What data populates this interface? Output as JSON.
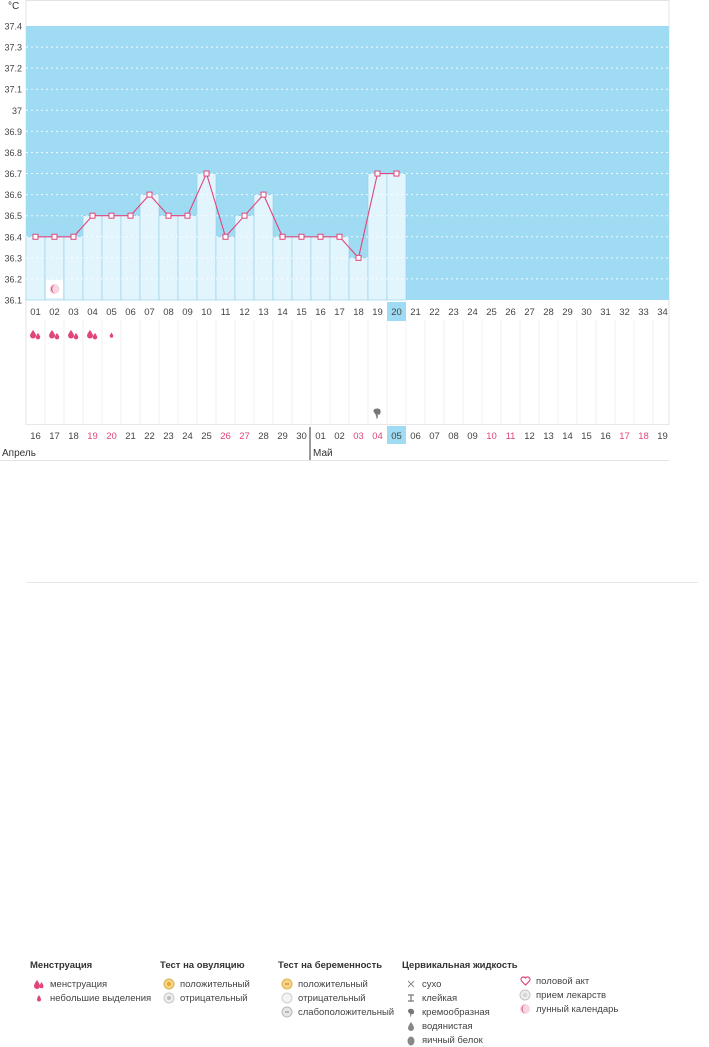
{
  "chart_data": {
    "type": "line",
    "unit_label": "°C",
    "ylim": [
      36.1,
      37.4
    ],
    "y_ticks": [
      "36.1",
      "36.2",
      "36.3",
      "36.4",
      "36.5",
      "36.6",
      "36.7",
      "36.8",
      "36.9",
      "37",
      "37.1",
      "37.2",
      "37.3",
      "37.4"
    ],
    "cycle_days": [
      "01",
      "02",
      "03",
      "04",
      "05",
      "06",
      "07",
      "08",
      "09",
      "10",
      "11",
      "12",
      "13",
      "14",
      "15",
      "16",
      "17",
      "18",
      "19",
      "20",
      "21",
      "22",
      "23",
      "24",
      "25",
      "26",
      "27",
      "28",
      "29",
      "30",
      "31",
      "32",
      "33",
      "34"
    ],
    "temperatures": [
      36.4,
      36.4,
      36.4,
      36.5,
      36.5,
      36.5,
      36.6,
      36.5,
      36.5,
      36.7,
      36.4,
      36.5,
      36.6,
      36.4,
      36.4,
      36.4,
      36.4,
      36.3,
      36.7,
      36.7
    ],
    "current_day": "20",
    "dates": [
      "16",
      "17",
      "18",
      "19",
      "20",
      "21",
      "22",
      "23",
      "24",
      "25",
      "26",
      "27",
      "28",
      "29",
      "30",
      "01",
      "02",
      "03",
      "04",
      "05",
      "06",
      "07",
      "08",
      "09",
      "10",
      "11",
      "12",
      "13",
      "14",
      "15",
      "16",
      "17",
      "18",
      "19"
    ],
    "weekend_dates": [
      3,
      4,
      10,
      11,
      17,
      18,
      24,
      25,
      31,
      32
    ],
    "month_labels": [
      {
        "label": "Апрель",
        "start_index": 0
      },
      {
        "label": "Май",
        "start_index": 15
      }
    ],
    "menstruation_days": [
      1,
      2,
      3,
      4
    ],
    "spotting_days": [
      5
    ],
    "lunar_day": 2,
    "mucus_creamy_day": 19,
    "colors": {
      "plot_bg": "#9fdbf2",
      "bar_fill": "#e2f5fd",
      "line": "#e0457b",
      "marker": "#e0457b",
      "weekend": "#e0457b",
      "highlight": "#9fdbf2"
    }
  },
  "legend": {
    "menstruation": {
      "title": "Менструация",
      "items": [
        "менструация",
        "небольшие выделения"
      ]
    },
    "ovulation_test": {
      "title": "Тест на овуляцию",
      "items": [
        "положительный",
        "отрицательный"
      ]
    },
    "pregnancy_test": {
      "title": "Тест на беременность",
      "items": [
        "положительный",
        "отрицательный",
        "слабоположительный"
      ]
    },
    "cervical_fluid": {
      "title": "Цервикальная жидкость",
      "items": [
        "сухо",
        "клейкая",
        "кремообразная",
        "водянистая",
        "яичный белок"
      ]
    },
    "other": {
      "items": [
        "половой акт",
        "прием лекарств",
        "лунный календарь"
      ]
    }
  }
}
